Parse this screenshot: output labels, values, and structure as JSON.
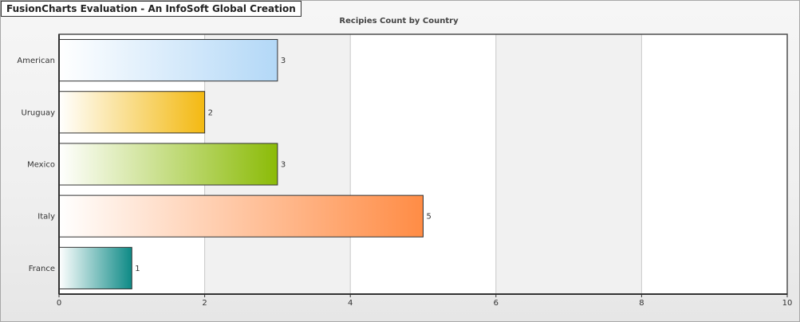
{
  "banner": "FusionCharts Evaluation - An InfoSoft Global Creation",
  "chart_data": {
    "type": "bar",
    "orientation": "horizontal",
    "title": "Recipies Count by Country",
    "categories": [
      "American",
      "Uruguay",
      "Mexico",
      "Italy",
      "France"
    ],
    "values": [
      3,
      2,
      3,
      5,
      1
    ],
    "colors": [
      "#b3d8f7",
      "#f3b911",
      "#8bbb07",
      "#ff8c45",
      "#0d8a86"
    ],
    "xlim": [
      0,
      10
    ],
    "x_ticks": [
      0,
      2,
      4,
      6,
      8,
      10
    ],
    "grid": true,
    "xlabel": "",
    "ylabel": ""
  }
}
